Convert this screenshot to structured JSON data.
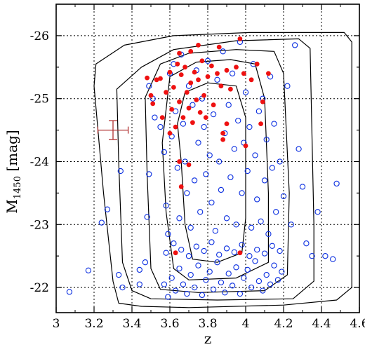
{
  "chart_data": {
    "type": "scatter",
    "title": "",
    "xlabel": "z",
    "ylabel_main": "M",
    "ylabel_sub": "1450",
    "ylabel_unit": " [mag]",
    "xlim": [
      3.0,
      4.6
    ],
    "ylim": [
      -21.6,
      -26.5
    ],
    "grid": true,
    "x_ticks": [
      3.0,
      3.2,
      3.4,
      3.6,
      3.8,
      4.0,
      4.2,
      4.4,
      4.6
    ],
    "x_tick_labels": [
      "3",
      "3.2",
      "3.4",
      "3.6",
      "3.8",
      "4",
      "4.2",
      "4.4",
      "4.6"
    ],
    "y_ticks": [
      -22,
      -23,
      -24,
      -25,
      -26
    ],
    "y_tick_labels": [
      "-22",
      "-23",
      "-24",
      "-25",
      "-26"
    ],
    "colors": {
      "model": "#0a2ee0",
      "observed": "#ee1111",
      "errorbar": "#b03030",
      "contour": "#000000"
    },
    "series": [
      {
        "kind": "open-circles",
        "color": "#0a2ee0",
        "points": [
          [
            3.07,
            -21.93
          ],
          [
            3.17,
            -22.27
          ],
          [
            3.24,
            -23.03
          ],
          [
            3.27,
            -23.24
          ],
          [
            3.35,
            -22.0
          ],
          [
            3.33,
            -22.2
          ],
          [
            3.34,
            -23.85
          ],
          [
            3.44,
            -22.05
          ],
          [
            3.44,
            -22.28
          ],
          [
            3.47,
            -22.4
          ],
          [
            3.48,
            -23.12
          ],
          [
            3.49,
            -23.8
          ],
          [
            3.49,
            -25.2
          ],
          [
            3.51,
            -25.0
          ],
          [
            3.52,
            -24.7
          ],
          [
            3.55,
            -24.55
          ],
          [
            3.57,
            -24.15
          ],
          [
            3.58,
            -23.3
          ],
          [
            3.59,
            -22.85
          ],
          [
            3.6,
            -25.4
          ],
          [
            3.61,
            -24.4
          ],
          [
            3.62,
            -25.55
          ],
          [
            3.63,
            -24.8
          ],
          [
            3.64,
            -23.9
          ],
          [
            3.65,
            -23.1
          ],
          [
            3.66,
            -25.7
          ],
          [
            3.67,
            -24.6
          ],
          [
            3.68,
            -24.0
          ],
          [
            3.69,
            -23.5
          ],
          [
            3.7,
            -25.2
          ],
          [
            3.71,
            -22.95
          ],
          [
            3.72,
            -24.9
          ],
          [
            3.73,
            -23.7
          ],
          [
            3.74,
            -25.45
          ],
          [
            3.75,
            -24.3
          ],
          [
            3.76,
            -23.2
          ],
          [
            3.77,
            -25.0
          ],
          [
            3.78,
            -24.55
          ],
          [
            3.79,
            -23.8
          ],
          [
            3.8,
            -25.6
          ],
          [
            3.81,
            -24.1
          ],
          [
            3.82,
            -23.35
          ],
          [
            3.83,
            -24.75
          ],
          [
            3.84,
            -22.9
          ],
          [
            3.85,
            -25.3
          ],
          [
            3.86,
            -24.0
          ],
          [
            3.87,
            -23.55
          ],
          [
            3.88,
            -25.75
          ],
          [
            3.89,
            -24.45
          ],
          [
            3.9,
            -23.1
          ],
          [
            3.91,
            -24.9
          ],
          [
            3.92,
            -23.75
          ],
          [
            3.93,
            -25.4
          ],
          [
            3.94,
            -24.2
          ],
          [
            3.95,
            -23.0
          ],
          [
            3.96,
            -24.65
          ],
          [
            3.97,
            -25.9
          ],
          [
            3.98,
            -23.5
          ],
          [
            3.99,
            -24.3
          ],
          [
            4.0,
            -25.1
          ],
          [
            4.01,
            -23.85
          ],
          [
            4.02,
            -24.55
          ],
          [
            4.03,
            -22.95
          ],
          [
            4.04,
            -25.55
          ],
          [
            4.05,
            -24.1
          ],
          [
            4.06,
            -23.4
          ],
          [
            4.07,
            -24.8
          ],
          [
            4.08,
            -23.05
          ],
          [
            4.09,
            -25.0
          ],
          [
            4.1,
            -23.7
          ],
          [
            4.11,
            -24.35
          ],
          [
            4.12,
            -22.85
          ],
          [
            4.13,
            -25.35
          ],
          [
            4.14,
            -23.9
          ],
          [
            4.15,
            -24.6
          ],
          [
            4.16,
            -23.2
          ],
          [
            4.18,
            -24.0
          ],
          [
            4.2,
            -23.45
          ],
          [
            4.22,
            -25.2
          ],
          [
            4.24,
            -23.0
          ],
          [
            4.26,
            -25.85
          ],
          [
            4.28,
            -24.2
          ],
          [
            4.3,
            -23.6
          ],
          [
            4.32,
            -22.7
          ],
          [
            4.35,
            -22.5
          ],
          [
            4.38,
            -23.2
          ],
          [
            4.42,
            -22.5
          ],
          [
            4.46,
            -22.45
          ],
          [
            4.48,
            -23.65
          ],
          [
            3.57,
            -22.05
          ],
          [
            3.59,
            -21.85
          ],
          [
            3.61,
            -22.15
          ],
          [
            3.63,
            -21.95
          ],
          [
            3.65,
            -22.3
          ],
          [
            3.67,
            -22.05
          ],
          [
            3.69,
            -21.9
          ],
          [
            3.71,
            -22.2
          ],
          [
            3.73,
            -22.0
          ],
          [
            3.75,
            -22.35
          ],
          [
            3.77,
            -21.88
          ],
          [
            3.79,
            -22.12
          ],
          [
            3.81,
            -22.25
          ],
          [
            3.83,
            -21.97
          ],
          [
            3.85,
            -22.4
          ],
          [
            3.87,
            -22.08
          ],
          [
            3.89,
            -21.92
          ],
          [
            3.91,
            -22.22
          ],
          [
            3.93,
            -22.03
          ],
          [
            3.95,
            -22.32
          ],
          [
            3.97,
            -21.9
          ],
          [
            3.99,
            -22.15
          ],
          [
            4.01,
            -22.28
          ],
          [
            4.03,
            -22.0
          ],
          [
            4.05,
            -22.42
          ],
          [
            4.07,
            -22.1
          ],
          [
            4.09,
            -21.95
          ],
          [
            4.11,
            -22.2
          ],
          [
            4.13,
            -22.05
          ],
          [
            4.15,
            -22.35
          ],
          [
            4.17,
            -22.12
          ],
          [
            4.19,
            -22.25
          ],
          [
            3.58,
            -22.55
          ],
          [
            3.62,
            -22.7
          ],
          [
            3.66,
            -22.6
          ],
          [
            3.7,
            -22.5
          ],
          [
            3.74,
            -22.65
          ],
          [
            3.78,
            -22.58
          ],
          [
            3.82,
            -22.72
          ],
          [
            3.86,
            -22.52
          ],
          [
            3.9,
            -22.62
          ],
          [
            3.94,
            -22.56
          ],
          [
            3.98,
            -22.68
          ],
          [
            4.02,
            -22.5
          ],
          [
            4.06,
            -22.6
          ],
          [
            4.1,
            -22.54
          ],
          [
            4.14,
            -22.66
          ],
          [
            4.18,
            -22.58
          ]
        ]
      },
      {
        "kind": "filled-dots",
        "color": "#ee1111",
        "points": [
          [
            3.48,
            -25.33
          ],
          [
            3.5,
            -25.05
          ],
          [
            3.51,
            -24.92
          ],
          [
            3.53,
            -25.3
          ],
          [
            3.55,
            -25.32
          ],
          [
            3.56,
            -24.7
          ],
          [
            3.58,
            -25.1
          ],
          [
            3.6,
            -25.42
          ],
          [
            3.61,
            -24.83
          ],
          [
            3.62,
            -25.18
          ],
          [
            3.63,
            -24.55
          ],
          [
            3.64,
            -25.55
          ],
          [
            3.65,
            -24.95
          ],
          [
            3.66,
            -25.38
          ],
          [
            3.67,
            -24.7
          ],
          [
            3.68,
            -25.5
          ],
          [
            3.69,
            -25.1
          ],
          [
            3.7,
            -24.85
          ],
          [
            3.71,
            -25.25
          ],
          [
            3.72,
            -24.62
          ],
          [
            3.73,
            -25.42
          ],
          [
            3.74,
            -24.98
          ],
          [
            3.75,
            -25.3
          ],
          [
            3.76,
            -24.78
          ],
          [
            3.77,
            -25.6
          ],
          [
            3.78,
            -25.05
          ],
          [
            3.79,
            -24.7
          ],
          [
            3.8,
            -25.35
          ],
          [
            3.82,
            -25.52
          ],
          [
            3.83,
            -24.9
          ],
          [
            3.85,
            -25.4
          ],
          [
            3.87,
            -25.2
          ],
          [
            3.88,
            -24.45
          ],
          [
            3.9,
            -25.45
          ],
          [
            3.92,
            -25.15
          ],
          [
            3.95,
            -25.5
          ],
          [
            3.97,
            -25.95
          ],
          [
            3.99,
            -25.4
          ],
          [
            4.03,
            -25.3
          ],
          [
            4.06,
            -25.55
          ],
          [
            4.09,
            -24.95
          ],
          [
            4.12,
            -25.4
          ],
          [
            3.6,
            -24.45
          ],
          [
            3.65,
            -24.0
          ],
          [
            3.7,
            -23.95
          ],
          [
            3.66,
            -23.6
          ],
          [
            3.88,
            -24.35
          ],
          [
            3.9,
            -24.6
          ],
          [
            4.0,
            -24.25
          ],
          [
            4.08,
            -24.6
          ],
          [
            3.63,
            -22.55
          ],
          [
            3.97,
            -22.55
          ],
          [
            3.65,
            -25.72
          ],
          [
            3.71,
            -25.75
          ],
          [
            3.86,
            -25.82
          ],
          [
            3.75,
            -25.85
          ]
        ]
      }
    ],
    "error_bar": {
      "x": 3.3,
      "y": -24.5,
      "x_err": 0.08,
      "y_err": 0.15
    },
    "contours": [
      [
        [
          3.21,
          -25.55
        ],
        [
          3.36,
          -25.85
        ],
        [
          3.62,
          -26.0
        ],
        [
          4.02,
          -26.05
        ],
        [
          4.52,
          -26.05
        ],
        [
          4.56,
          -25.9
        ],
        [
          4.56,
          -22.0
        ],
        [
          4.48,
          -21.8
        ],
        [
          4.2,
          -21.72
        ],
        [
          3.7,
          -21.68
        ],
        [
          3.45,
          -21.7
        ],
        [
          3.33,
          -21.75
        ],
        [
          3.3,
          -22.1
        ],
        [
          3.25,
          -23.5
        ],
        [
          3.2,
          -25.2
        ]
      ],
      [
        [
          3.32,
          -25.15
        ],
        [
          3.45,
          -25.5
        ],
        [
          3.62,
          -25.78
        ],
        [
          3.95,
          -25.92
        ],
        [
          4.28,
          -25.95
        ],
        [
          4.34,
          -25.8
        ],
        [
          4.36,
          -23.0
        ],
        [
          4.36,
          -22.1
        ],
        [
          4.25,
          -21.82
        ],
        [
          3.85,
          -21.8
        ],
        [
          3.5,
          -21.82
        ],
        [
          3.4,
          -21.95
        ],
        [
          3.35,
          -22.4
        ],
        [
          3.33,
          -24.0
        ]
      ],
      [
        [
          3.47,
          -25.02
        ],
        [
          3.55,
          -25.55
        ],
        [
          3.7,
          -25.72
        ],
        [
          3.95,
          -25.78
        ],
        [
          4.15,
          -25.75
        ],
        [
          4.2,
          -25.4
        ],
        [
          4.23,
          -23.5
        ],
        [
          4.22,
          -22.2
        ],
        [
          4.1,
          -21.95
        ],
        [
          3.75,
          -21.92
        ],
        [
          3.55,
          -21.97
        ],
        [
          3.5,
          -22.3
        ],
        [
          3.48,
          -23.8
        ]
      ],
      [
        [
          3.56,
          -24.3
        ],
        [
          3.6,
          -25.35
        ],
        [
          3.74,
          -25.58
        ],
        [
          3.92,
          -25.62
        ],
        [
          4.05,
          -25.55
        ],
        [
          4.1,
          -25.0
        ],
        [
          4.12,
          -23.5
        ],
        [
          4.12,
          -22.4
        ],
        [
          3.95,
          -22.15
        ],
        [
          3.7,
          -22.12
        ],
        [
          3.62,
          -22.3
        ],
        [
          3.58,
          -23.2
        ]
      ],
      [
        [
          3.64,
          -24.6
        ],
        [
          3.68,
          -25.1
        ],
        [
          3.8,
          -25.25
        ],
        [
          3.95,
          -25.2
        ],
        [
          4.0,
          -24.7
        ],
        [
          4.0,
          -23.1
        ],
        [
          3.98,
          -22.55
        ],
        [
          3.85,
          -22.4
        ],
        [
          3.72,
          -22.45
        ],
        [
          3.68,
          -23.0
        ],
        [
          3.66,
          -24.0
        ]
      ]
    ]
  }
}
